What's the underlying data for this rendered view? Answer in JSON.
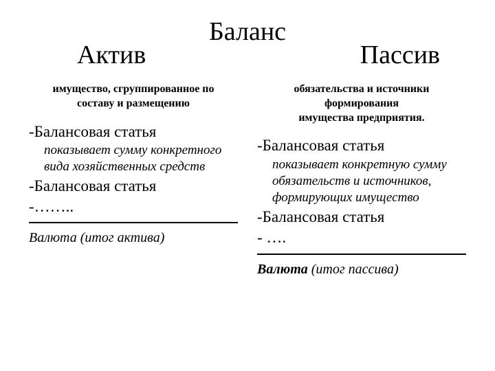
{
  "title": {
    "center": "Баланс",
    "left": "Актив",
    "right": "Пассив"
  },
  "left": {
    "subtitle_line1": "имущество, сгруппированное по",
    "subtitle_line2": "составу и  размещению",
    "item1_heading": "-Балансовая статья",
    "item1_desc_line1": "показывает сумму конкретного",
    "item1_desc_line2": "вида хозяйственных средств",
    "item2_heading": "-Балансовая статья",
    "item3_heading": "-…….. ",
    "footer": "Валюта (итог актива)"
  },
  "right": {
    "subtitle_line1": "обязательства и источники формирования",
    "subtitle_line2": "имущества предприятия.",
    "item1_heading": "-Балансовая статья",
    "item1_desc_line1": "показывает конкретную сумму",
    "item1_desc_line2": "обязательств и источников,",
    "item1_desc_line3": "формирующих имущество",
    "item2_heading": "-Балансовая статья",
    "item3_heading": "-    …. ",
    "footer_bold": "Валюта",
    "footer_rest": "   (итог пассива)"
  },
  "colors": {
    "text": "#000000",
    "background": "#ffffff",
    "divider": "#000000"
  }
}
